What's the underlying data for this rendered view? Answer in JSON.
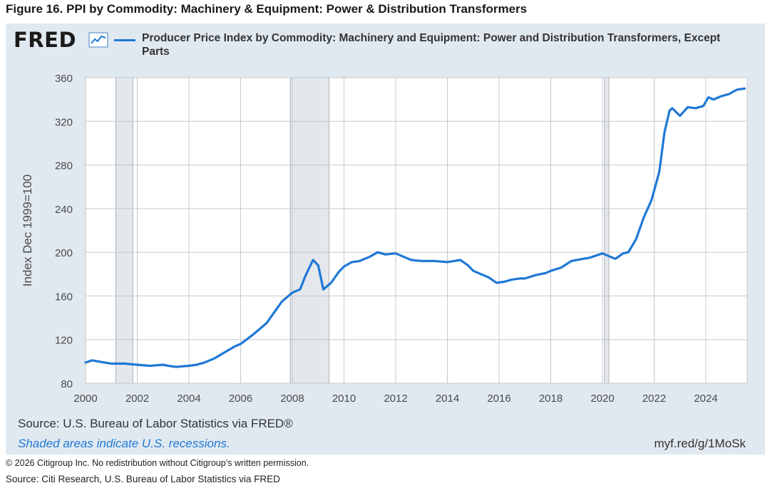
{
  "figure_title": "Figure 16. PPI by Commodity: Machinery & Equipment: Power & Distribution Transformers",
  "brand": "FRED",
  "legend_label": "Producer Price Index by Commodity: Machinery and Equipment: Power and Distribution Transformers, Except Parts",
  "source_text": "Source: U.S. Bureau of Labor Statistics via FRED®",
  "recession_note": "Shaded areas indicate U.S. recessions.",
  "short_url": "myf.red/g/1MoSk",
  "copyright": "© 2026 Citigroup Inc. No redistribution without Citigroup’s written permission.",
  "bottom_source": "Source: Citi Research, U.S. Bureau of Labor Statistics via FRED",
  "colors": {
    "line": "#1f78d6",
    "panel": "#e1e9f0",
    "recession": "#e4e7eb"
  },
  "chart_data": {
    "type": "line",
    "title": "Producer Price Index by Commodity: Machinery and Equipment: Power and Distribution Transformers, Except Parts",
    "xlabel": "",
    "ylabel": "Index Dec 1999=100",
    "xlim": [
      2000.0,
      2025.6
    ],
    "ylim": [
      80,
      360
    ],
    "x_ticks": [
      2000,
      2002,
      2004,
      2006,
      2008,
      2010,
      2012,
      2014,
      2016,
      2018,
      2020,
      2022,
      2024
    ],
    "y_ticks": [
      80,
      120,
      160,
      200,
      240,
      280,
      320,
      360
    ],
    "grid": true,
    "recessions": [
      [
        2001.17,
        2001.83
      ],
      [
        2007.92,
        2009.42
      ],
      [
        2020.08,
        2020.25
      ]
    ],
    "series": [
      {
        "name": "Producer Price Index by Commodity: Machinery and Equipment: Power and Distribution Transformers, Except Parts",
        "x": [
          2000.0,
          2000.25,
          2000.5,
          2001.0,
          2001.5,
          2002.0,
          2002.5,
          2003.0,
          2003.2,
          2003.5,
          2004.0,
          2004.3,
          2004.6,
          2005.0,
          2005.5,
          2005.8,
          2006.0,
          2006.5,
          2006.8,
          2007.0,
          2007.3,
          2007.6,
          2008.0,
          2008.3,
          2008.5,
          2008.8,
          2009.0,
          2009.2,
          2009.5,
          2009.8,
          2010.0,
          2010.3,
          2010.6,
          2011.0,
          2011.3,
          2011.6,
          2012.0,
          2012.3,
          2012.6,
          2013.0,
          2013.5,
          2014.0,
          2014.5,
          2014.8,
          2015.0,
          2015.3,
          2015.6,
          2015.9,
          2016.2,
          2016.5,
          2016.8,
          2017.0,
          2017.4,
          2017.8,
          2018.0,
          2018.4,
          2018.8,
          2019.0,
          2019.5,
          2020.0,
          2020.3,
          2020.5,
          2020.8,
          2021.0,
          2021.3,
          2021.6,
          2021.9,
          2022.2,
          2022.4,
          2022.6,
          2022.7,
          2023.0,
          2023.3,
          2023.6,
          2023.9,
          2024.1,
          2024.3,
          2024.6,
          2024.9,
          2025.2,
          2025.5
        ],
        "values": [
          99,
          101,
          100,
          98,
          98,
          97,
          96,
          97,
          96,
          95,
          96,
          97,
          99,
          103,
          110,
          114,
          116,
          125,
          131,
          135,
          145,
          155,
          163,
          166,
          178,
          193,
          188,
          166,
          172,
          182,
          187,
          191,
          192,
          196,
          200,
          198,
          199,
          196,
          193,
          192,
          192,
          191,
          193,
          188,
          183,
          180,
          177,
          172,
          173,
          175,
          176,
          176,
          179,
          181,
          183,
          186,
          192,
          193,
          195,
          199,
          196,
          194,
          199,
          200,
          212,
          232,
          248,
          274,
          310,
          330,
          332,
          325,
          333,
          332,
          334,
          342,
          340,
          343,
          345,
          349,
          350
        ]
      }
    ]
  }
}
